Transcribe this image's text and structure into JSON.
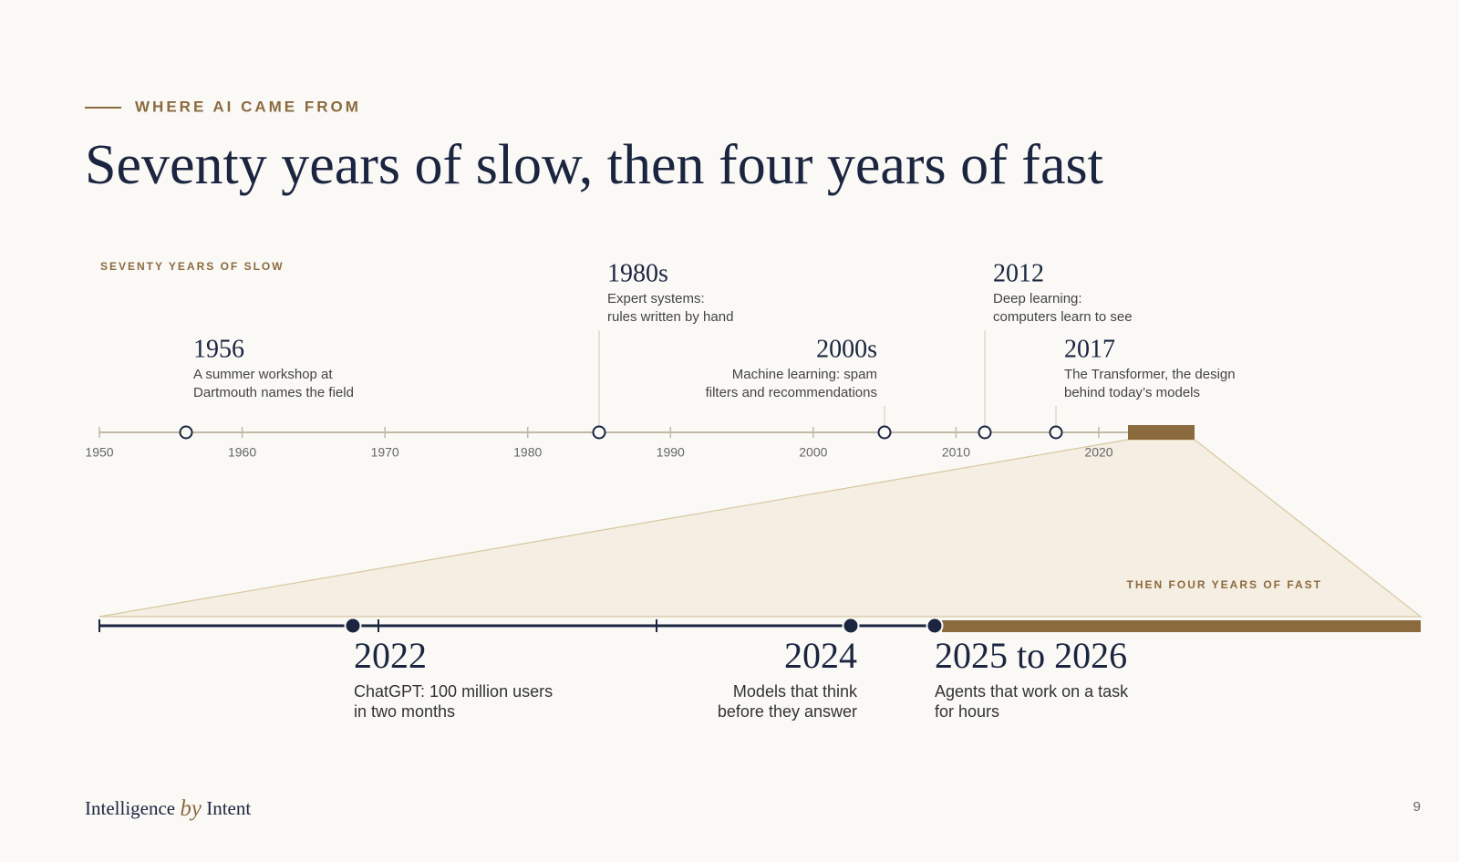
{
  "header": {
    "eyebrow": "WHERE AI CAME FROM",
    "title": "Seventy years of slow, then four years of fast"
  },
  "slow": {
    "label": "SEVENTY YEARS OF SLOW",
    "ticks": [
      1950,
      1960,
      1970,
      1980,
      1990,
      2000,
      2010,
      2020
    ],
    "events": [
      {
        "year": "1956",
        "lines": [
          "A summer workshop at",
          "Dartmouth names the field"
        ]
      },
      {
        "year": "1980s",
        "lines": [
          "Expert systems:",
          "rules written by hand"
        ]
      },
      {
        "year": "2000s",
        "lines": [
          "Machine learning: spam",
          "filters and recommendations"
        ]
      },
      {
        "year": "2012",
        "lines": [
          "Deep learning:",
          "computers learn to see"
        ]
      },
      {
        "year": "2017",
        "lines": [
          "The Transformer, the design",
          "behind today’s models"
        ]
      }
    ]
  },
  "fast": {
    "label": "THEN FOUR YEARS OF FAST",
    "events": [
      {
        "year": "2022",
        "lines": [
          "ChatGPT: 100 million users",
          "in two months"
        ]
      },
      {
        "year": "2024",
        "lines": [
          "Models that think",
          "before they answer"
        ]
      },
      {
        "year": "2025 to 2026",
        "lines": [
          "Agents that work on a task",
          "for hours"
        ]
      }
    ]
  },
  "footer": {
    "brand": "Intelligence",
    "by": "by",
    "brand2": "Intent",
    "page": "9"
  }
}
